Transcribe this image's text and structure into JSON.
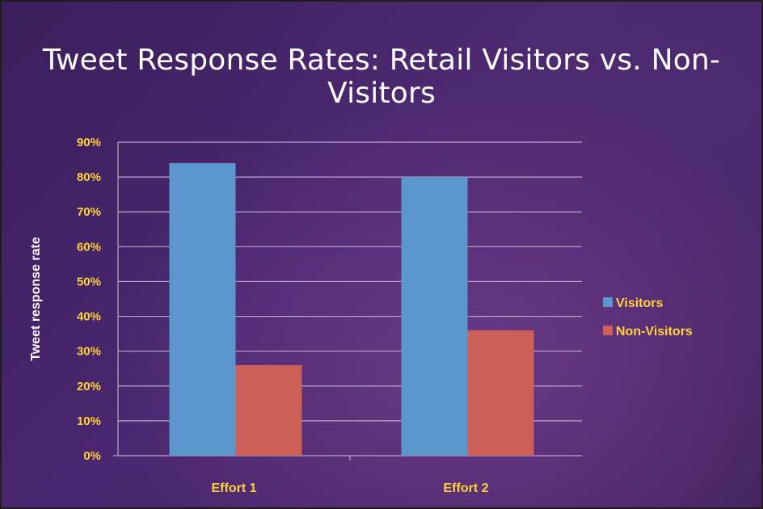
{
  "chart_data": {
    "type": "bar",
    "title": "Tweet Response Rates: Retail Visitors vs. Non-Visitors",
    "xlabel": "",
    "ylabel": "Tweet response rate",
    "categories": [
      "Effort 1",
      "Effort 2"
    ],
    "series": [
      {
        "name": "Visitors",
        "values": [
          84,
          80
        ],
        "color": "#5b96cf"
      },
      {
        "name": "Non-Visitors",
        "values": [
          26,
          36
        ],
        "color": "#cc5f58"
      }
    ],
    "ylim": [
      0,
      90
    ],
    "yticks": [
      0,
      10,
      20,
      30,
      40,
      50,
      60,
      70,
      80,
      90
    ],
    "ytick_labels": [
      "0%",
      "10%",
      "20%",
      "30%",
      "40%",
      "50%",
      "60%",
      "70%",
      "80%",
      "90%"
    ],
    "grid": true,
    "legend": "right",
    "colors": {
      "background": "#43235f",
      "text": "#ffd23a",
      "title": "#ffffff",
      "gridline": "#b9a9c9"
    }
  }
}
